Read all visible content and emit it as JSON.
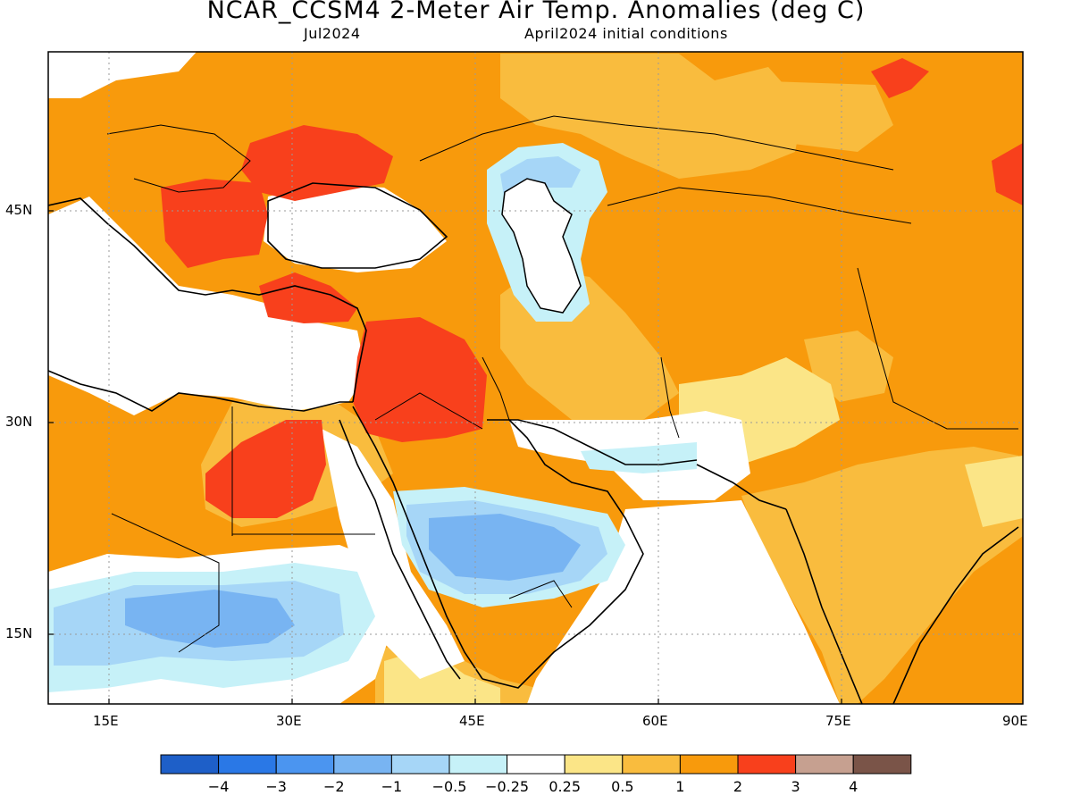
{
  "header": {
    "title": "NCAR_CCSM4 2-Meter Air Temp. Anomalies (deg C)",
    "period": "Jul2024",
    "init": "April2024 initial conditions"
  },
  "map": {
    "region": "Middle East / South Asia",
    "x_ticks": [
      "15E",
      "30E",
      "45E",
      "60E",
      "75E",
      "90E"
    ],
    "y_ticks": [
      "45N",
      "30N",
      "15N"
    ],
    "lon_range": [
      10,
      90
    ],
    "lat_range": [
      10,
      55
    ],
    "grid": "dotted"
  },
  "colorbar": {
    "labels": [
      "-4",
      "-3",
      "-2",
      "-1",
      "-0.5",
      "-0.25",
      "0.25",
      "0.5",
      "1",
      "2",
      "3",
      "4"
    ],
    "colors": [
      "#1e5fc8",
      "#2a78e6",
      "#4b95f0",
      "#78b4f2",
      "#a6d6f7",
      "#c6f1f8",
      "#ffffff",
      "#fbe587",
      "#f9bc3e",
      "#f89a0c",
      "#f8401c",
      "#c6a090",
      "#7a5448"
    ]
  },
  "regions": [
    {
      "name": "Eastern Europe / Balkans warm core",
      "anomaly": "2 to 3"
    },
    {
      "name": "Iraq / Syria warm core",
      "anomaly": "2 to 3"
    },
    {
      "name": "Egypt / Libya warm core",
      "anomaly": "2 to 3"
    },
    {
      "name": "Arabian Peninsula interior",
      "anomaly": "-2 to -1"
    },
    {
      "name": "Sahel / Sudan belt",
      "anomaly": "-2 to -0.25"
    },
    {
      "name": "Caspian Sea fringe",
      "anomaly": "-1 to -0.25"
    },
    {
      "name": "Central Asia / Kazakhstan",
      "anomaly": "1 to 2"
    },
    {
      "name": "India",
      "anomaly": "0.5 to 2"
    }
  ]
}
